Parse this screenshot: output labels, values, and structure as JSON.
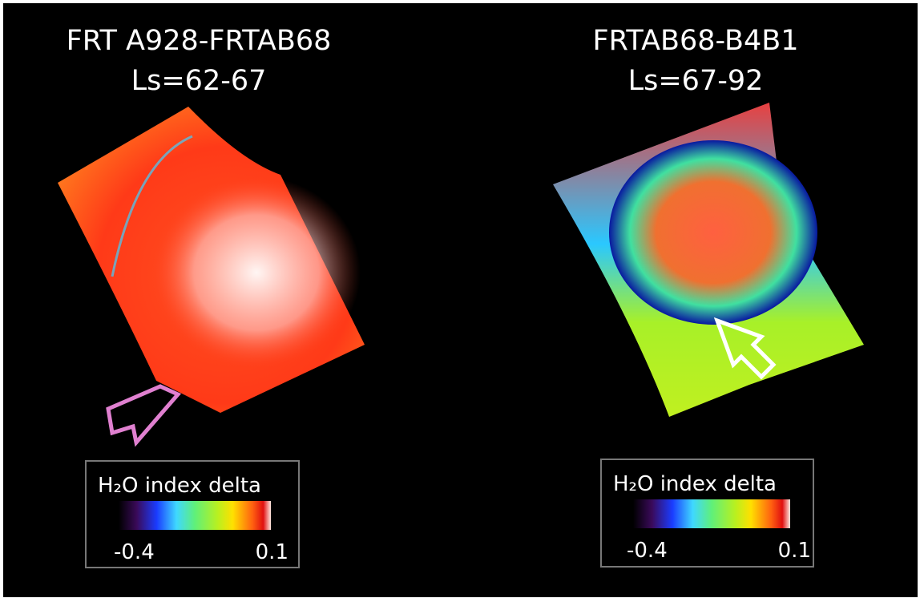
{
  "panels": [
    {
      "title": [
        "FRT A928-FRTAB68",
        "Ls=62-67"
      ],
      "colorbar": {
        "label": "H₂O index delta",
        "min": "-0.4",
        "max": "0.1"
      }
    },
    {
      "title": [
        "FRTAB68-B4B1",
        "Ls=67-92"
      ],
      "colorbar": {
        "label": "H₂O index delta",
        "min": "-0.4",
        "max": "0.1"
      }
    }
  ]
}
